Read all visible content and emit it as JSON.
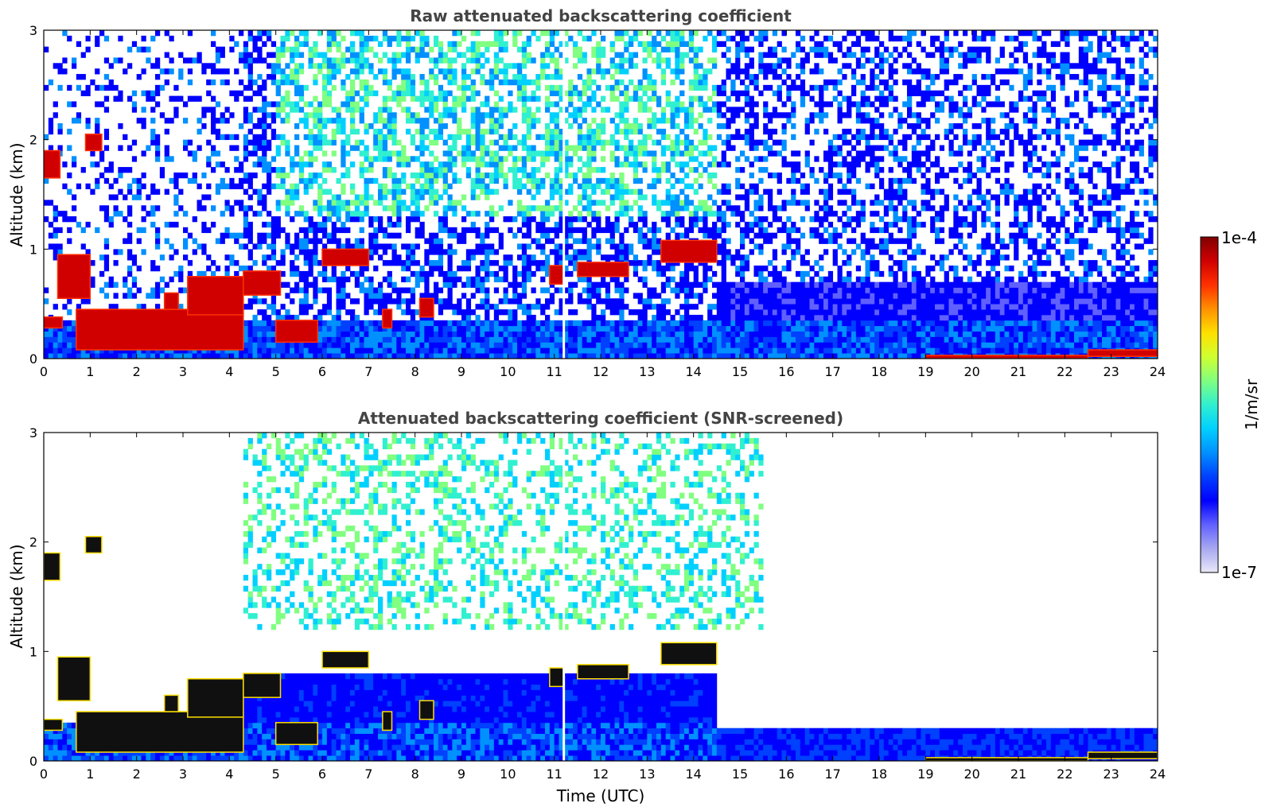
{
  "chart_data": [
    {
      "type": "heatmap",
      "title": "Raw attenuated backscattering coefficient",
      "ylabel": "Altitude (km)",
      "xlabel": "",
      "xlim": [
        0,
        24
      ],
      "ylim": [
        0,
        3
      ],
      "xticks": [
        0,
        1,
        2,
        3,
        4,
        5,
        6,
        7,
        8,
        9,
        10,
        11,
        12,
        13,
        14,
        15,
        16,
        17,
        18,
        19,
        20,
        21,
        22,
        23,
        24
      ],
      "yticks": [
        0,
        1,
        2,
        3
      ],
      "screened": false,
      "cloud_layers": [
        {
          "t0": 0.0,
          "t1": 0.35,
          "alt0": 1.65,
          "alt1": 1.9
        },
        {
          "t0": 0.9,
          "t1": 1.25,
          "alt0": 1.9,
          "alt1": 2.05
        },
        {
          "t0": 0.3,
          "t1": 1.0,
          "alt0": 0.55,
          "alt1": 0.95
        },
        {
          "t0": 0.0,
          "t1": 0.4,
          "alt0": 0.28,
          "alt1": 0.38
        },
        {
          "t0": 0.7,
          "t1": 4.3,
          "alt0": 0.08,
          "alt1": 0.45
        },
        {
          "t0": 2.6,
          "t1": 2.9,
          "alt0": 0.45,
          "alt1": 0.6
        },
        {
          "t0": 3.1,
          "t1": 4.3,
          "alt0": 0.4,
          "alt1": 0.75
        },
        {
          "t0": 4.3,
          "t1": 5.1,
          "alt0": 0.58,
          "alt1": 0.8
        },
        {
          "t0": 5.0,
          "t1": 5.9,
          "alt0": 0.15,
          "alt1": 0.35
        },
        {
          "t0": 6.0,
          "t1": 7.0,
          "alt0": 0.85,
          "alt1": 1.0
        },
        {
          "t0": 7.3,
          "t1": 7.5,
          "alt0": 0.28,
          "alt1": 0.45
        },
        {
          "t0": 8.1,
          "t1": 8.4,
          "alt0": 0.38,
          "alt1": 0.55
        },
        {
          "t0": 10.9,
          "t1": 11.2,
          "alt0": 0.68,
          "alt1": 0.85
        },
        {
          "t0": 11.5,
          "t1": 12.6,
          "alt0": 0.75,
          "alt1": 0.88
        },
        {
          "t0": 13.3,
          "t1": 14.5,
          "alt0": 0.88,
          "alt1": 1.08
        },
        {
          "t0": 19.0,
          "t1": 22.5,
          "alt0": 0.0,
          "alt1": 0.03
        },
        {
          "t0": 22.5,
          "t1": 24.0,
          "alt0": 0.02,
          "alt1": 0.08
        }
      ]
    },
    {
      "type": "heatmap",
      "title": "Attenuated backscattering coefficient (SNR-screened)",
      "ylabel": "Altitude (km)",
      "xlabel": "Time (UTC)",
      "xlim": [
        0,
        24
      ],
      "ylim": [
        0,
        3
      ],
      "xticks": [
        0,
        1,
        2,
        3,
        4,
        5,
        6,
        7,
        8,
        9,
        10,
        11,
        12,
        13,
        14,
        15,
        16,
        17,
        18,
        19,
        20,
        21,
        22,
        23,
        24
      ],
      "yticks": [
        0,
        1,
        2,
        3
      ],
      "screened": true,
      "cloud_layers": [
        {
          "t0": 0.0,
          "t1": 0.35,
          "alt0": 1.65,
          "alt1": 1.9
        },
        {
          "t0": 0.9,
          "t1": 1.25,
          "alt0": 1.9,
          "alt1": 2.05
        },
        {
          "t0": 0.3,
          "t1": 1.0,
          "alt0": 0.55,
          "alt1": 0.95
        },
        {
          "t0": 0.0,
          "t1": 0.4,
          "alt0": 0.28,
          "alt1": 0.38
        },
        {
          "t0": 0.7,
          "t1": 4.3,
          "alt0": 0.08,
          "alt1": 0.45
        },
        {
          "t0": 2.6,
          "t1": 2.9,
          "alt0": 0.45,
          "alt1": 0.6
        },
        {
          "t0": 3.1,
          "t1": 4.3,
          "alt0": 0.4,
          "alt1": 0.75
        },
        {
          "t0": 4.3,
          "t1": 5.1,
          "alt0": 0.58,
          "alt1": 0.8
        },
        {
          "t0": 5.0,
          "t1": 5.9,
          "alt0": 0.15,
          "alt1": 0.35
        },
        {
          "t0": 6.0,
          "t1": 7.0,
          "alt0": 0.85,
          "alt1": 1.0
        },
        {
          "t0": 7.3,
          "t1": 7.5,
          "alt0": 0.28,
          "alt1": 0.45
        },
        {
          "t0": 8.1,
          "t1": 8.4,
          "alt0": 0.38,
          "alt1": 0.55
        },
        {
          "t0": 10.9,
          "t1": 11.2,
          "alt0": 0.68,
          "alt1": 0.85
        },
        {
          "t0": 11.5,
          "t1": 12.6,
          "alt0": 0.75,
          "alt1": 0.88
        },
        {
          "t0": 13.3,
          "t1": 14.5,
          "alt0": 0.88,
          "alt1": 1.08
        },
        {
          "t0": 19.0,
          "t1": 22.5,
          "alt0": 0.0,
          "alt1": 0.03
        },
        {
          "t0": 22.5,
          "t1": 24.0,
          "alt0": 0.02,
          "alt1": 0.08
        }
      ]
    }
  ],
  "colorbar": {
    "label": "1/m/sr",
    "max_label": "1e-4",
    "min_label": "1e-7",
    "colormap": [
      "#e8e8f8",
      "#a8a8f0",
      "#6060ff",
      "#0000ff",
      "#0040ff",
      "#0090ff",
      "#00d0ff",
      "#30f0d0",
      "#80ff80",
      "#d0ff30",
      "#ffe000",
      "#ff9000",
      "#ff3000",
      "#d00000",
      "#800000"
    ]
  }
}
